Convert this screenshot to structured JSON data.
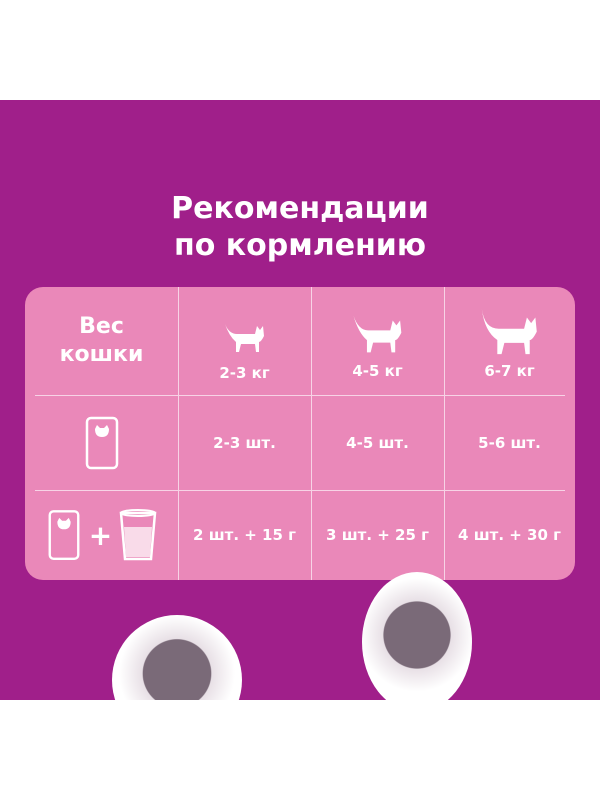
{
  "title": {
    "line1": "Рекомендации",
    "line2": "по кормлению"
  },
  "table": {
    "header_label": {
      "line1": "Вес",
      "line2": "кошки"
    },
    "weights": [
      "2-3 кг",
      "4-5 кг",
      "6-7 кг"
    ],
    "wet_only": [
      "2-3 шт.",
      "4-5 шт.",
      "5-6 шт."
    ],
    "wet_plus_dry": [
      "2 шт. + 15 г",
      "3 шт. + 25 г",
      "4 шт. + 30 г"
    ],
    "plus_sign": "+"
  },
  "colors": {
    "background": "#a01f8a",
    "table": "#ea88b9"
  }
}
